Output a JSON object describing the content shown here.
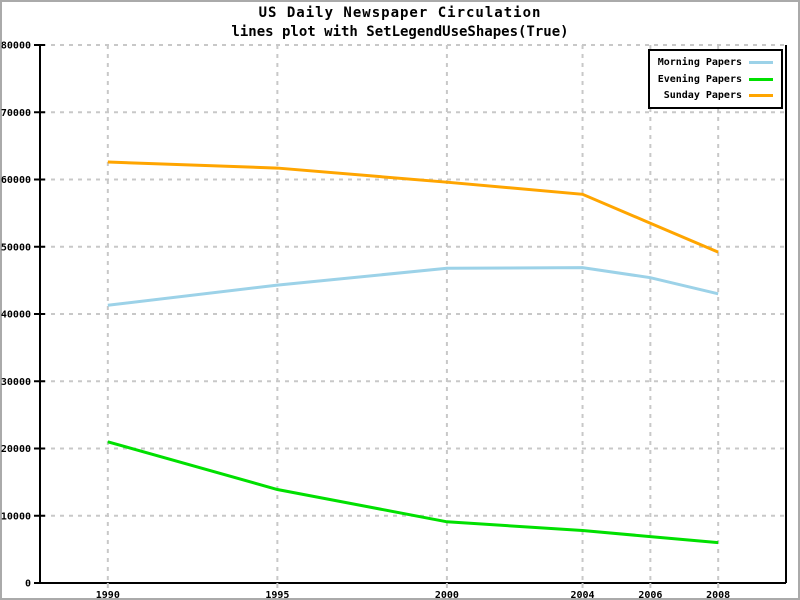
{
  "figure": {
    "background": "#ffffff",
    "border_color": "#aaaaaa"
  },
  "colors": {
    "axis": "#000000",
    "grid": "#c8c8c8",
    "tick_label": "#000000",
    "legend_border": "#000000",
    "legend_background": "#ffffff"
  },
  "chart_data": {
    "type": "line",
    "title": "US Daily Newspaper Circulation",
    "subtitle": "lines plot with SetLegendUseShapes(True)",
    "xlabel": "",
    "ylabel": "",
    "x": [
      1990,
      1995,
      2000,
      2004,
      2006,
      2008
    ],
    "x_tick_labels": [
      "1990",
      "1995",
      "2000",
      "2004",
      "2006",
      "2008"
    ],
    "xlim": [
      1988,
      2010
    ],
    "y_ticks": [
      0,
      10000,
      20000,
      30000,
      40000,
      50000,
      60000,
      70000,
      80000
    ],
    "y_tick_labels": [
      "0",
      "10000",
      "20000",
      "30000",
      "40000",
      "50000",
      "60000",
      "70000",
      "80000"
    ],
    "ylim": [
      0,
      80000
    ],
    "grid": "dashed",
    "legend_position": "top-right",
    "legend_use_shapes": true,
    "line_width": 3,
    "series": [
      {
        "name": "Morning Papers",
        "color": "#9cd2e8",
        "values": [
          41300,
          44300,
          46800,
          46900,
          45400,
          43000
        ]
      },
      {
        "name": "Evening Papers",
        "color": "#00e000",
        "values": [
          21000,
          13900,
          9100,
          7800,
          6900,
          6000
        ]
      },
      {
        "name": "Sunday Papers",
        "color": "#ffa500",
        "values": [
          62600,
          61700,
          59600,
          57800,
          53500,
          49200
        ]
      }
    ]
  }
}
